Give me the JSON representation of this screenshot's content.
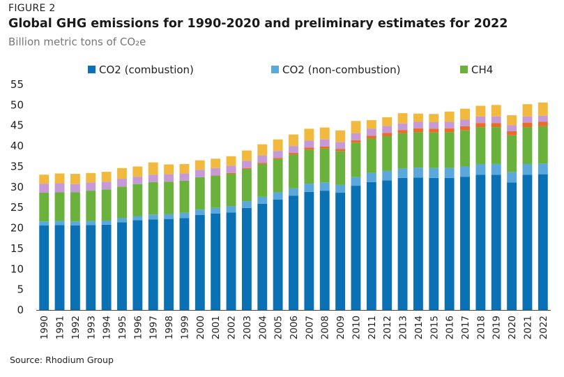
{
  "figure_label": "FIGURE 2",
  "title": "Global GHG emissions for 1990-2020 and preliminary estimates for 2022",
  "subtitle": "Billion metric tons of CO₂e",
  "source": "Source: Rhodium Group",
  "chart_data": {
    "type": "bar",
    "stacked": true,
    "title": "Global GHG emissions for 1990-2020 and preliminary estimates for 2022",
    "subtitle": "Billion metric tons of CO₂e",
    "ylim": [
      0,
      55
    ],
    "yticks": [
      0,
      5,
      10,
      15,
      20,
      25,
      30,
      35,
      40,
      45,
      50,
      55
    ],
    "grid": false,
    "legend_position": "top",
    "categories": [
      "1990",
      "1991",
      "1992",
      "1993",
      "1994",
      "1995",
      "1996",
      "1997",
      "1998",
      "1999",
      "2000",
      "2001",
      "2002",
      "2003",
      "2004",
      "2005",
      "2006",
      "2007",
      "2008",
      "2009",
      "2010",
      "2011",
      "2012",
      "2013",
      "2014",
      "2015",
      "2016",
      "2017",
      "2018",
      "2019",
      "2020",
      "2021",
      "2022"
    ],
    "series": [
      {
        "name": "CO2 (combustion)",
        "legend": true,
        "color": "#0a71b4",
        "values": [
          20.6,
          20.7,
          20.6,
          20.7,
          20.8,
          21.4,
          21.9,
          22.1,
          22.2,
          22.4,
          23.2,
          23.5,
          23.8,
          24.9,
          25.9,
          26.9,
          27.9,
          28.8,
          29.1,
          28.6,
          30.3,
          31.2,
          31.6,
          32.2,
          32.3,
          32.2,
          32.2,
          32.5,
          33.0,
          33.0,
          31.1,
          33.0,
          33.1
        ]
      },
      {
        "name": "CO2 (non-combustion)",
        "legend": true,
        "color": "#5ba8dc",
        "values": [
          1.0,
          1.0,
          1.0,
          1.0,
          1.0,
          1.0,
          1.0,
          1.2,
          1.2,
          1.3,
          1.3,
          1.4,
          1.5,
          1.6,
          1.7,
          1.8,
          1.8,
          2.0,
          2.0,
          1.9,
          2.1,
          2.2,
          2.3,
          2.3,
          2.4,
          2.4,
          2.4,
          2.5,
          2.6,
          2.6,
          2.5,
          2.6,
          2.6
        ]
      },
      {
        "name": "CH4",
        "legend": true,
        "color": "#6ab23c",
        "values": [
          7.0,
          7.0,
          7.1,
          7.4,
          7.6,
          7.7,
          7.8,
          7.9,
          7.9,
          7.8,
          7.9,
          7.8,
          7.9,
          7.9,
          8.0,
          8.1,
          8.2,
          8.3,
          8.3,
          8.2,
          8.4,
          8.4,
          8.5,
          8.6,
          8.7,
          8.7,
          8.8,
          8.8,
          9.0,
          9.0,
          9.0,
          9.0,
          9.1
        ]
      },
      {
        "name": "",
        "legend": false,
        "color": "#e86d2a",
        "values": [
          0.0,
          0.0,
          0.0,
          0.0,
          0.0,
          0.0,
          0.0,
          0.0,
          0.0,
          0.0,
          0.0,
          0.1,
          0.2,
          0.2,
          0.3,
          0.3,
          0.4,
          0.5,
          0.5,
          0.6,
          0.6,
          0.7,
          0.8,
          0.8,
          0.9,
          0.9,
          0.9,
          1.0,
          1.0,
          1.0,
          1.0,
          1.1,
          1.1
        ]
      },
      {
        "name": "",
        "legend": false,
        "color": "#c59ad6",
        "values": [
          2.2,
          2.2,
          2.0,
          2.0,
          1.9,
          1.9,
          1.8,
          1.8,
          1.8,
          1.8,
          1.8,
          1.8,
          1.8,
          1.8,
          1.8,
          1.7,
          1.7,
          1.7,
          1.7,
          1.7,
          1.7,
          1.7,
          1.7,
          1.6,
          1.6,
          1.6,
          1.6,
          1.6,
          1.6,
          1.6,
          1.5,
          1.5,
          1.5
        ]
      },
      {
        "name": "",
        "legend": false,
        "color": "#f1b93e",
        "values": [
          2.2,
          2.4,
          2.5,
          2.3,
          2.4,
          2.6,
          2.5,
          3.0,
          2.4,
          2.3,
          2.3,
          2.3,
          2.3,
          2.5,
          2.7,
          2.8,
          2.8,
          2.9,
          2.9,
          2.8,
          3.0,
          2.1,
          2.1,
          2.5,
          2.0,
          2.0,
          2.5,
          2.7,
          2.6,
          2.8,
          2.4,
          3.0,
          3.2
        ]
      }
    ]
  }
}
